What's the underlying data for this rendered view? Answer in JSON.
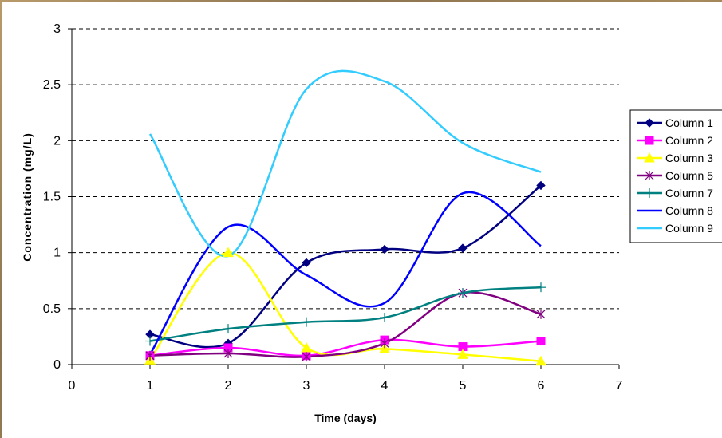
{
  "chart_data": {
    "type": "line",
    "title": "",
    "xlabel": "Time (days)",
    "ylabel": "Concentration (mg/L)",
    "xlim": [
      0,
      7
    ],
    "ylim": [
      0,
      3
    ],
    "x_ticks": [
      "0",
      "1",
      "2",
      "3",
      "4",
      "5",
      "6",
      "7"
    ],
    "y_ticks": [
      "0",
      "0.5",
      "1",
      "1.5",
      "2",
      "2.5",
      "3"
    ],
    "grid": "horizontal dashed",
    "legend_position": "right",
    "x": [
      1,
      2,
      3,
      4,
      5,
      6
    ],
    "series": [
      {
        "name": "Column 1",
        "color": "#000080",
        "marker": "diamond",
        "values": [
          0.27,
          0.19,
          0.91,
          1.03,
          1.04,
          1.6
        ]
      },
      {
        "name": "Column 2",
        "color": "#ff00ff",
        "marker": "square",
        "values": [
          0.08,
          0.15,
          0.08,
          0.22,
          0.16,
          0.21
        ]
      },
      {
        "name": "Column 3",
        "color": "#ffff00",
        "marker": "triangle",
        "values": [
          0.04,
          1.0,
          0.15,
          0.14,
          0.09,
          0.03
        ]
      },
      {
        "name": "Column 5",
        "color": "#800080",
        "marker": "asterisk",
        "values": [
          0.08,
          0.1,
          0.07,
          0.19,
          0.64,
          0.45
        ]
      },
      {
        "name": "Column 7",
        "color": "#008080",
        "marker": "plus",
        "values": [
          0.21,
          0.32,
          0.38,
          0.42,
          0.64,
          0.69
        ]
      },
      {
        "name": "Column 8",
        "color": "#0000ff",
        "marker": "none",
        "values": [
          0.09,
          1.23,
          0.8,
          0.55,
          1.53,
          1.06
        ]
      },
      {
        "name": "Column 9",
        "color": "#33ccff",
        "marker": "none",
        "values": [
          2.06,
          0.97,
          2.46,
          2.53,
          1.98,
          1.72
        ]
      }
    ]
  }
}
